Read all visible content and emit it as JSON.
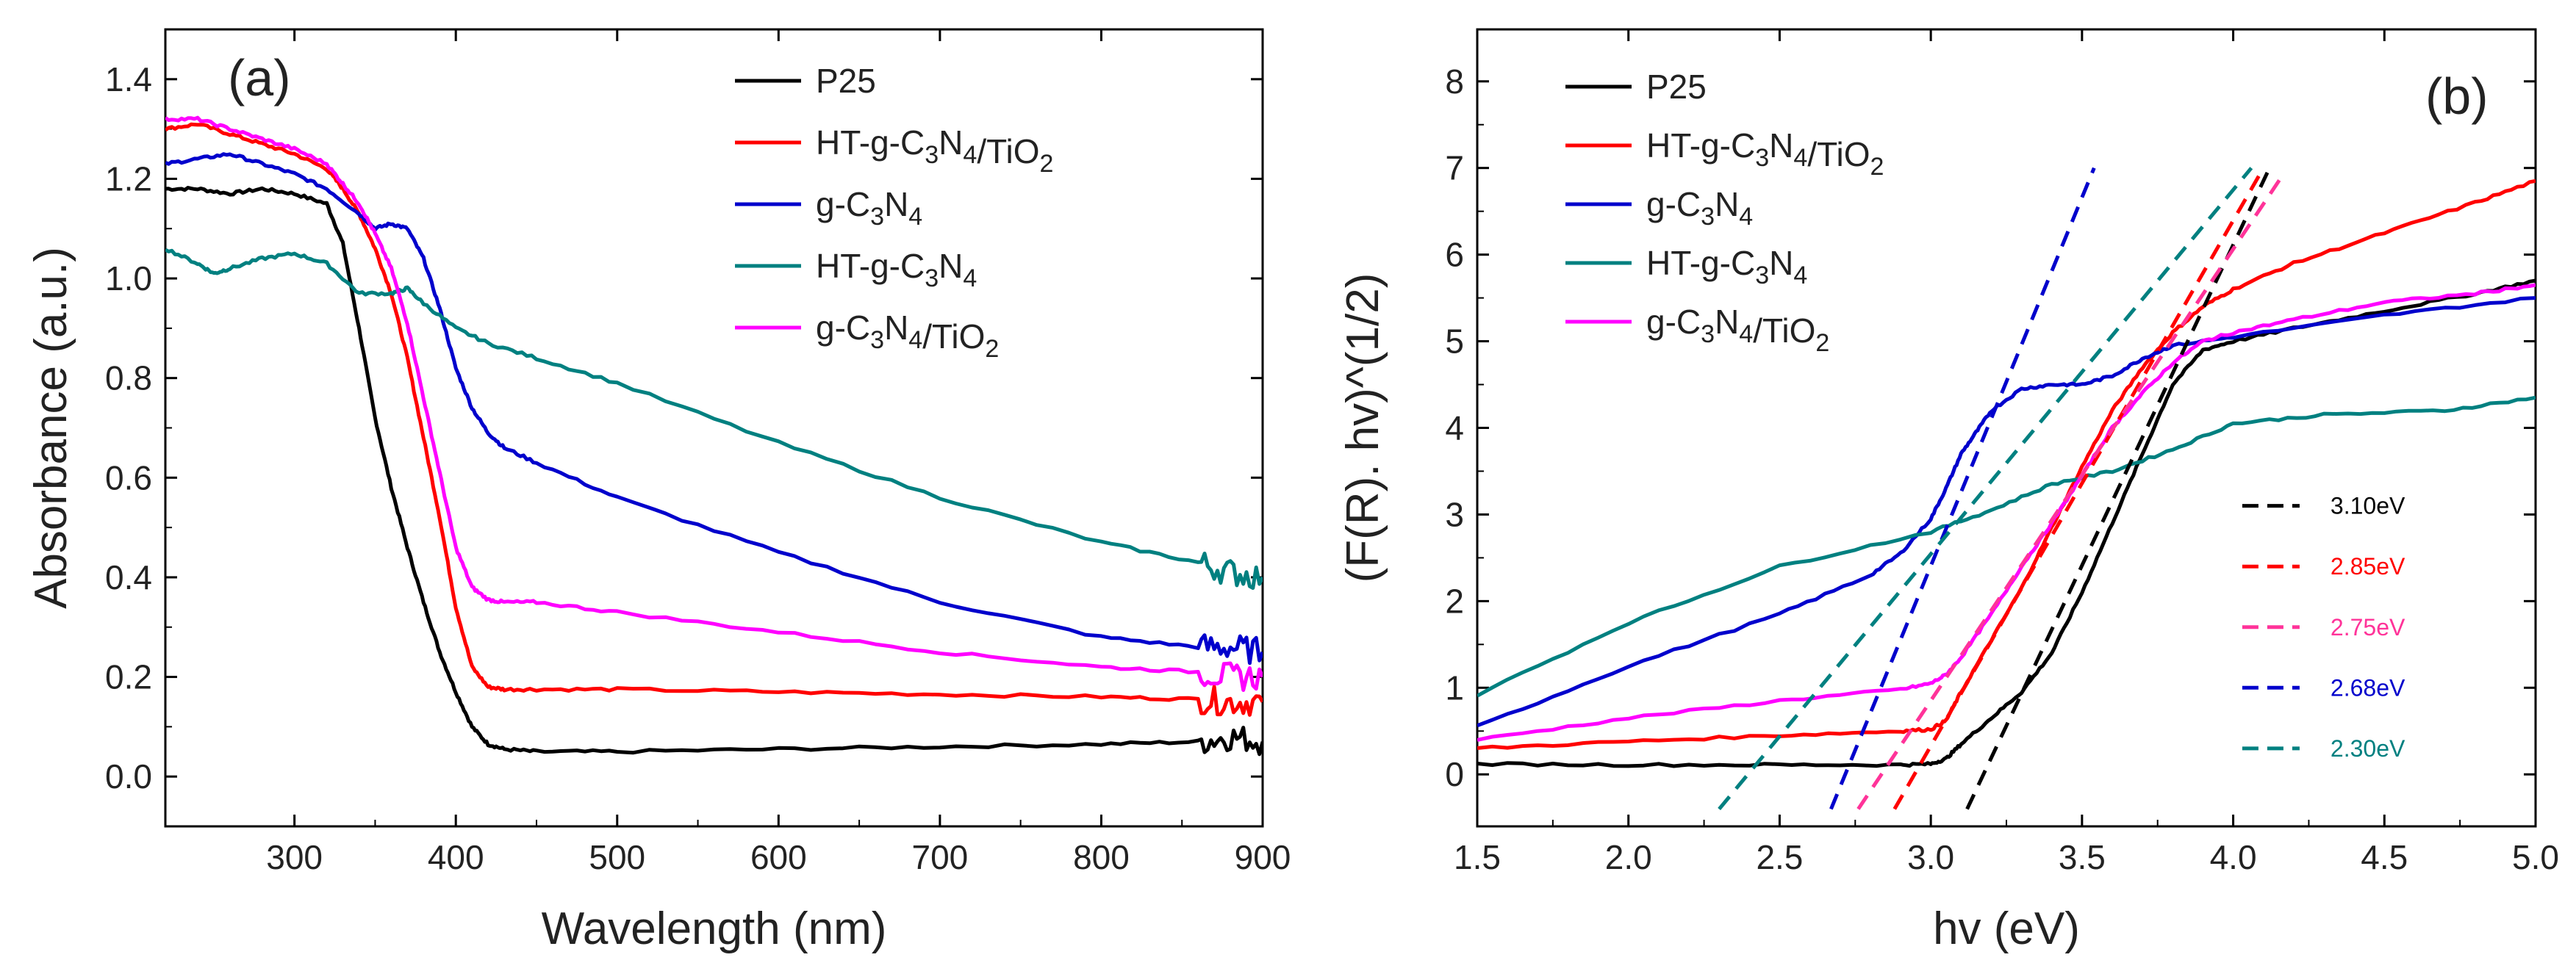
{
  "chart_data": [
    {
      "type": "line",
      "panel_label": "(a)",
      "xlabel": "Wavelength (nm)",
      "ylabel": "Absorbance (a.u.)",
      "xlim": [
        220,
        900
      ],
      "ylim": [
        -0.1,
        1.5
      ],
      "xticks": [
        "300",
        "400",
        "500",
        "600",
        "700",
        "800",
        "900"
      ],
      "yticks": [
        "0.0",
        "0.2",
        "0.4",
        "0.6",
        "0.8",
        "1.0",
        "1.2",
        "1.4"
      ],
      "legend_position": "top-right",
      "series": [
        {
          "name": "P25",
          "color": "#000000",
          "x": [
            220,
            240,
            260,
            280,
            300,
            320,
            330,
            340,
            350,
            360,
            370,
            380,
            390,
            400,
            410,
            420,
            430,
            450,
            500,
            600,
            700,
            800,
            860,
            880,
            900
          ],
          "y": [
            1.18,
            1.18,
            1.17,
            1.18,
            1.17,
            1.15,
            1.07,
            0.9,
            0.72,
            0.58,
            0.46,
            0.35,
            0.25,
            0.17,
            0.1,
            0.065,
            0.055,
            0.05,
            0.05,
            0.055,
            0.06,
            0.065,
            0.07,
            0.08,
            0.07
          ]
        },
        {
          "name": "HT-g-C3N4/TiO2",
          "color": "#ff0000",
          "x": [
            220,
            240,
            260,
            280,
            300,
            320,
            330,
            340,
            350,
            360,
            370,
            380,
            390,
            400,
            410,
            420,
            430,
            450,
            500,
            600,
            700,
            800,
            860,
            880,
            900
          ],
          "y": [
            1.3,
            1.31,
            1.29,
            1.27,
            1.25,
            1.22,
            1.18,
            1.13,
            1.06,
            0.97,
            0.84,
            0.68,
            0.52,
            0.34,
            0.22,
            0.18,
            0.175,
            0.175,
            0.175,
            0.17,
            0.165,
            0.16,
            0.155,
            0.15,
            0.15
          ]
        },
        {
          "name": "g-C3N4",
          "color": "#0000cc",
          "x": [
            220,
            240,
            260,
            280,
            300,
            320,
            340,
            350,
            360,
            370,
            380,
            390,
            400,
            410,
            420,
            430,
            450,
            500,
            600,
            700,
            800,
            860,
            880,
            900
          ],
          "y": [
            1.23,
            1.24,
            1.25,
            1.23,
            1.21,
            1.18,
            1.13,
            1.1,
            1.11,
            1.1,
            1.04,
            0.94,
            0.82,
            0.74,
            0.69,
            0.66,
            0.63,
            0.56,
            0.45,
            0.35,
            0.28,
            0.26,
            0.26,
            0.25
          ]
        },
        {
          "name": "HT-g-C3N4",
          "color": "#008080",
          "x": [
            220,
            240,
            250,
            260,
            280,
            300,
            320,
            340,
            360,
            370,
            380,
            400,
            420,
            450,
            500,
            600,
            700,
            800,
            860,
            880,
            900
          ],
          "y": [
            1.06,
            1.03,
            1.01,
            1.02,
            1.04,
            1.05,
            1.03,
            0.97,
            0.97,
            0.98,
            0.95,
            0.9,
            0.87,
            0.84,
            0.79,
            0.67,
            0.56,
            0.47,
            0.43,
            0.41,
            0.4
          ]
        },
        {
          "name": "g-C3N4/TiO2",
          "color": "#ff00ff",
          "x": [
            220,
            240,
            260,
            280,
            300,
            320,
            330,
            340,
            350,
            360,
            370,
            380,
            390,
            400,
            410,
            420,
            430,
            450,
            500,
            600,
            700,
            800,
            860,
            880,
            900
          ],
          "y": [
            1.32,
            1.32,
            1.3,
            1.28,
            1.26,
            1.23,
            1.19,
            1.15,
            1.09,
            1.02,
            0.91,
            0.76,
            0.61,
            0.46,
            0.38,
            0.355,
            0.35,
            0.35,
            0.33,
            0.29,
            0.25,
            0.22,
            0.21,
            0.2,
            0.2
          ]
        }
      ]
    },
    {
      "type": "line",
      "panel_label": "(b)",
      "xlabel": "hv (eV)",
      "ylabel": "(F(R). hv)^(1/2)",
      "xlim": [
        1.5,
        5.0
      ],
      "ylim": [
        -0.6,
        8.6
      ],
      "xticks": [
        "1.5",
        "2.0",
        "2.5",
        "3.0",
        "3.5",
        "4.0",
        "4.5",
        "5.0"
      ],
      "yticks": [
        "0",
        "1",
        "2",
        "3",
        "4",
        "5",
        "6",
        "7",
        "8"
      ],
      "legend_position": "top-left",
      "series": [
        {
          "name": "P25",
          "color": "#000000",
          "x": [
            1.5,
            2.0,
            2.5,
            2.9,
            3.0,
            3.05,
            3.1,
            3.2,
            3.3,
            3.4,
            3.5,
            3.6,
            3.7,
            3.8,
            3.9,
            4.0,
            4.2,
            4.5,
            4.8,
            5.0
          ],
          "y": [
            0.12,
            0.11,
            0.11,
            0.11,
            0.12,
            0.18,
            0.35,
            0.65,
            0.95,
            1.4,
            2.1,
            2.9,
            3.7,
            4.5,
            4.9,
            5.0,
            5.15,
            5.35,
            5.55,
            5.7
          ]
        },
        {
          "name": "HT-g-C3N4/TiO2",
          "color": "#ff0000",
          "x": [
            1.5,
            2.0,
            2.5,
            2.9,
            3.0,
            3.05,
            3.1,
            3.2,
            3.3,
            3.4,
            3.5,
            3.6,
            3.7,
            3.8,
            3.9,
            4.0,
            4.2,
            4.5,
            4.8,
            5.0
          ],
          "y": [
            0.3,
            0.38,
            0.45,
            0.5,
            0.52,
            0.62,
            0.95,
            1.55,
            2.15,
            2.85,
            3.55,
            4.2,
            4.7,
            5.1,
            5.4,
            5.6,
            5.9,
            6.25,
            6.6,
            6.85
          ]
        },
        {
          "name": "g-C3N4",
          "color": "#0000cc",
          "x": [
            1.5,
            2.0,
            2.5,
            2.8,
            2.9,
            3.0,
            3.05,
            3.1,
            3.15,
            3.2,
            3.3,
            3.4,
            3.5,
            3.6,
            3.7,
            3.8,
            4.0,
            4.5,
            5.0
          ],
          "y": [
            0.55,
            1.25,
            1.85,
            2.3,
            2.55,
            2.95,
            3.3,
            3.7,
            3.95,
            4.2,
            4.45,
            4.5,
            4.5,
            4.6,
            4.8,
            4.95,
            5.05,
            5.3,
            5.5
          ]
        },
        {
          "name": "HT-g-C3N4",
          "color": "#008080",
          "x": [
            1.5,
            2.0,
            2.5,
            3.0,
            3.2,
            3.4,
            3.6,
            3.8,
            4.0,
            4.3,
            4.7,
            5.0
          ],
          "y": [
            0.92,
            1.75,
            2.4,
            2.8,
            3.05,
            3.35,
            3.5,
            3.75,
            4.05,
            4.15,
            4.2,
            4.35
          ]
        },
        {
          "name": "g-C3N4/TiO2",
          "color": "#ff00ff",
          "x": [
            1.5,
            2.0,
            2.5,
            2.9,
            3.0,
            3.05,
            3.1,
            3.2,
            3.3,
            3.4,
            3.5,
            3.6,
            3.7,
            3.8,
            3.9,
            4.0,
            4.2,
            4.5,
            4.8,
            5.0
          ],
          "y": [
            0.4,
            0.65,
            0.85,
            0.98,
            1.05,
            1.15,
            1.35,
            1.85,
            2.4,
            2.9,
            3.45,
            4.0,
            4.4,
            4.75,
            5.0,
            5.1,
            5.25,
            5.45,
            5.55,
            5.65
          ]
        }
      ],
      "fit_lines": [
        {
          "label": "3.10eV",
          "color": "#000000",
          "x": [
            3.12,
            4.12
          ],
          "y": [
            -0.4,
            7.0
          ]
        },
        {
          "label": "2.85eV",
          "color": "#ff0000",
          "x": [
            2.88,
            4.1
          ],
          "y": [
            -0.4,
            7.0
          ]
        },
        {
          "label": "2.75eV",
          "color": "#ff3399",
          "x": [
            2.76,
            4.17
          ],
          "y": [
            -0.4,
            6.95
          ]
        },
        {
          "label": "2.68eV",
          "color": "#0000cc",
          "x": [
            2.67,
            3.54
          ],
          "y": [
            -0.4,
            7.0
          ]
        },
        {
          "label": "2.30eV",
          "color": "#008080",
          "x": [
            2.3,
            4.06
          ],
          "y": [
            -0.4,
            7.0
          ]
        }
      ]
    }
  ]
}
